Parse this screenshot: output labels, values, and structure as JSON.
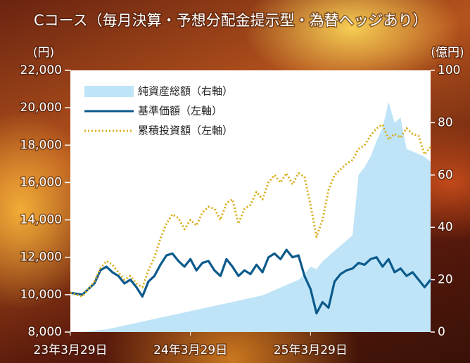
{
  "chart_data": {
    "type": "line",
    "title": "Cコース（毎月決算・予想分配金提示型・為替ヘッジあり）",
    "y_label": "(円)",
    "y2_label": "(億円)",
    "categories": [
      "23年3月29日",
      null,
      null,
      null,
      null,
      null,
      null,
      null,
      null,
      null,
      null,
      null,
      null,
      null,
      null,
      null,
      null,
      null,
      null,
      null,
      "24年3月29日",
      null,
      null,
      null,
      null,
      null,
      null,
      null,
      null,
      null,
      null,
      null,
      null,
      null,
      null,
      null,
      null,
      null,
      null,
      null,
      "25年3月29日",
      null,
      null,
      null,
      null,
      null,
      null,
      null,
      null,
      null,
      null,
      null,
      null,
      null,
      null,
      null,
      null,
      null,
      null,
      null,
      null
    ],
    "series": [
      {
        "name": "純資産総額（右軸）",
        "kind": "area",
        "axis": "y2",
        "color": "#bfe4f7",
        "values": [
          0,
          0,
          0,
          0.3,
          0.5,
          0.8,
          1,
          1.5,
          2,
          2.5,
          3,
          3.5,
          4,
          4.5,
          5,
          5.5,
          6,
          6.5,
          7,
          7.5,
          8,
          8.5,
          9,
          9.5,
          10,
          10.5,
          11,
          11.5,
          12,
          12.5,
          13,
          13.5,
          14,
          15,
          16,
          17,
          18,
          19,
          20,
          22,
          25,
          24,
          27,
          29,
          31,
          33,
          35,
          37,
          60,
          63,
          67,
          73,
          78,
          88,
          80,
          82,
          70,
          69,
          68,
          67,
          65
        ]
      },
      {
        "name": "基準価額（左軸）",
        "kind": "line",
        "color": "#0b5a8c",
        "values": [
          10100,
          10050,
          10000,
          10300,
          10600,
          11300,
          11500,
          11200,
          11000,
          10600,
          10800,
          10400,
          9900,
          10700,
          11000,
          11600,
          12100,
          12200,
          11800,
          11500,
          11900,
          11300,
          11700,
          11800,
          11300,
          11000,
          11900,
          11500,
          11000,
          11300,
          11100,
          11600,
          11200,
          12000,
          12200,
          11900,
          12400,
          12000,
          12100,
          11000,
          10300,
          9000,
          9600,
          9300,
          10700,
          11100,
          11300,
          11400,
          11700,
          11600,
          11900,
          12000,
          11500,
          11900,
          11200,
          11400,
          11000,
          11200,
          10800,
          10400,
          10800
        ]
      },
      {
        "name": "累積投資額（左軸）",
        "kind": "dotted",
        "color": "#d9ad1c",
        "values": [
          10100,
          10000,
          9900,
          10300,
          10700,
          11400,
          11800,
          11600,
          11200,
          10800,
          11000,
          10600,
          10400,
          11300,
          12000,
          13000,
          13800,
          14300,
          14100,
          13500,
          14000,
          13700,
          14400,
          14700,
          14600,
          14000,
          14900,
          15100,
          13800,
          14600,
          14800,
          15500,
          15100,
          16000,
          16400,
          16000,
          16500,
          15900,
          16500,
          16300,
          14800,
          13100,
          14000,
          15600,
          16400,
          16700,
          17000,
          17200,
          17800,
          18000,
          18500,
          18900,
          19100,
          18300,
          18600,
          18400,
          18900,
          18600,
          18500,
          17500,
          17900
        ]
      }
    ],
    "ylim": [
      8000,
      22000
    ],
    "yticks": [
      {
        "value": 8000,
        "label": "8,000"
      },
      {
        "value": 10000,
        "label": "10,000"
      },
      {
        "value": 12000,
        "label": "12,000"
      },
      {
        "value": 14000,
        "label": "14,000"
      },
      {
        "value": 16000,
        "label": "16,000"
      },
      {
        "value": 18000,
        "label": "18,000"
      },
      {
        "value": 20000,
        "label": "20,000"
      },
      {
        "value": 22000,
        "label": "22,000"
      }
    ],
    "y2lim": [
      0,
      100
    ],
    "y2ticks": [
      0,
      20,
      40,
      60,
      80,
      100
    ],
    "legend": "upper-left"
  }
}
